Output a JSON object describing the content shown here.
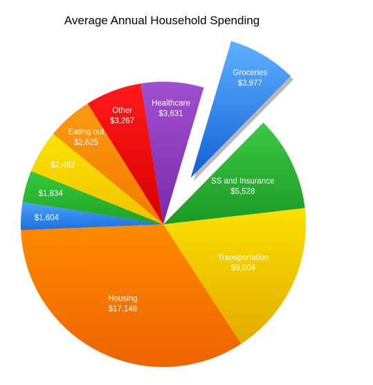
{
  "chart_data": {
    "type": "pie",
    "title": "Average Annual Household Spending",
    "start_angle_deg": -73.5,
    "direction": "clockwise",
    "slices": [
      {
        "label": "Groceries",
        "value_label": "$3,977",
        "value": 3977,
        "color_top": "#5fb0ff",
        "color_bottom": "#1060d6",
        "exploded": true
      },
      {
        "label": "SS and Insurance",
        "value_label": "$5,528",
        "value": 5528,
        "color_top": "#3ec843",
        "color_bottom": "#1a9a25",
        "exploded": false
      },
      {
        "label": "Transportation",
        "value_label": "$9,004",
        "value": 9004,
        "color_top": "#fbe000",
        "color_bottom": "#e3ab00",
        "exploded": false
      },
      {
        "label": "Housing",
        "value_label": "$17,148",
        "value": 17148,
        "color_top": "#ff8a00",
        "color_bottom": "#ee6300",
        "exploded": false
      },
      {
        "label": "",
        "value_label": "$1,604",
        "value": 1604,
        "color_top": "#4aa3ff",
        "color_bottom": "#1c6fdc",
        "exploded": false
      },
      {
        "label": "",
        "value_label": "$1,834",
        "value": 1834,
        "color_top": "#35c83c",
        "color_bottom": "#1ea427",
        "exploded": false
      },
      {
        "label": "",
        "value_label": "$2,482",
        "value": 2482,
        "color_top": "#fbe300",
        "color_bottom": "#f0c200",
        "exploded": false
      },
      {
        "label": "Eating out",
        "value_label": "$2,625",
        "value": 2625,
        "color_top": "#ff9a10",
        "color_bottom": "#f07a00",
        "exploded": false
      },
      {
        "label": "Other",
        "value_label": "$3,267",
        "value": 3267,
        "color_top": "#ff1a1a",
        "color_bottom": "#d80000",
        "exploded": false
      },
      {
        "label": "Healthcare",
        "value_label": "$3,631",
        "value": 3631,
        "color_top": "#a04fd0",
        "color_bottom": "#7a2aa8",
        "exploded": false
      }
    ]
  }
}
